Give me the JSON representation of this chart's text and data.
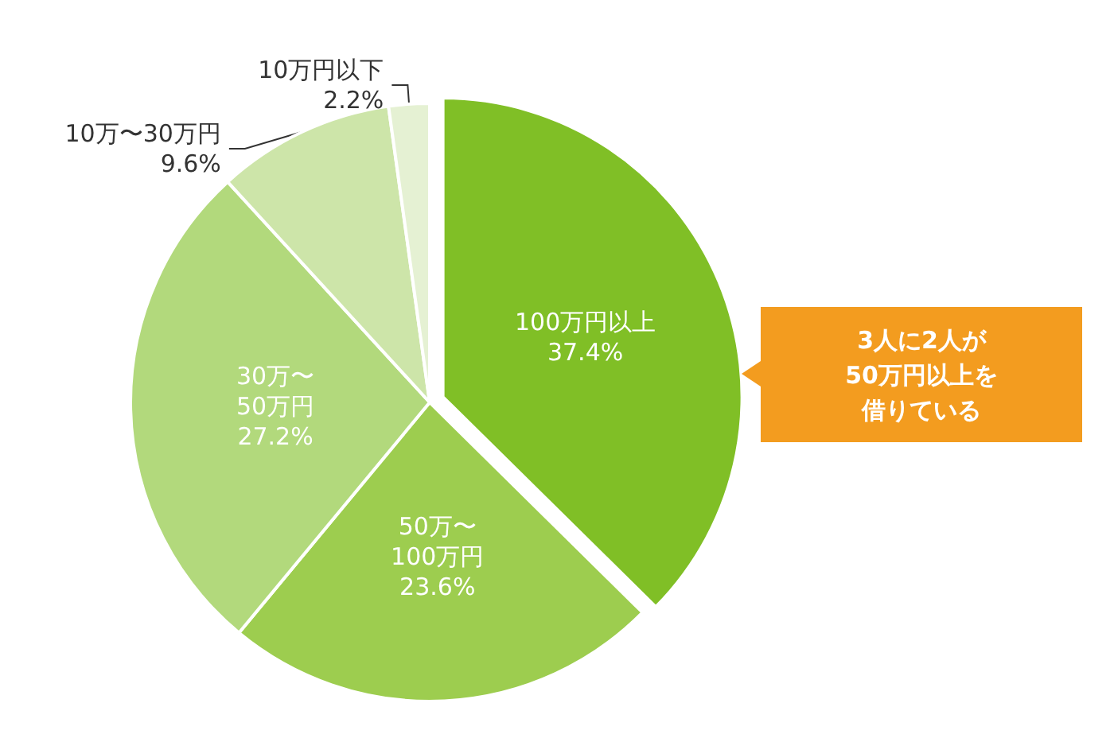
{
  "chart_data": {
    "type": "pie",
    "categories": [
      "100万円以上",
      "50万〜100万円",
      "30万〜50万円",
      "10万〜30万円",
      "10万円以下"
    ],
    "values": [
      37.4,
      23.6,
      27.2,
      9.6,
      2.2
    ],
    "value_labels": [
      "37.4%",
      "23.6%",
      "27.2%",
      "9.6%",
      "2.2%"
    ],
    "colors": [
      "#80bf26",
      "#9dcd4f",
      "#b2d97c",
      "#cde5a9",
      "#e5f1d3"
    ],
    "legend": false,
    "annotations": [
      "3人に2人が",
      "50万円以上を",
      "借りている"
    ]
  }
}
